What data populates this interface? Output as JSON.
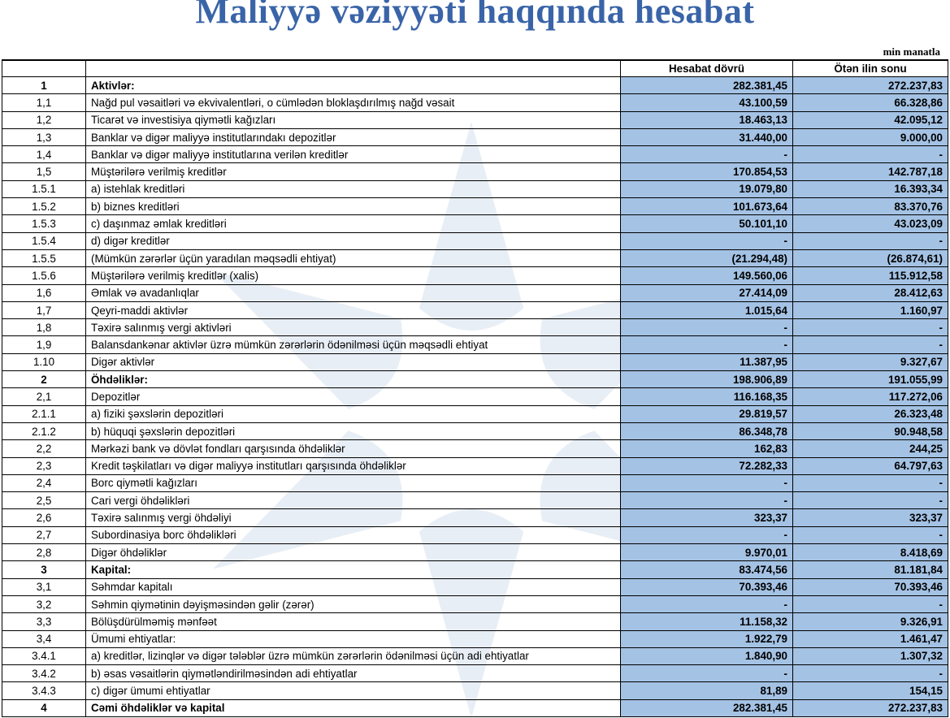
{
  "title": "Maliyyə vəziyyəti haqqında hesabat",
  "unit": "min manatla",
  "colors": {
    "value_fill": "#a4c2e4",
    "title": "#3a64a8"
  },
  "columns": {
    "current": "Hesabat dövrü",
    "previous": "Ötən ilin sonu"
  },
  "rows": [
    {
      "no": "1",
      "label": "Aktivlər:",
      "current": "282.381,45",
      "previous": "272.237,83",
      "bold": true
    },
    {
      "no": "1,1",
      "label": "Nağd pul vəsaitləri və  ekvivalentləri, o cümlədən bloklaşdırılmış nağd vəsait",
      "current": "43.100,59",
      "previous": "66.328,86"
    },
    {
      "no": "1,2",
      "label": "Ticarət və investisiya qiymətli kağızları",
      "current": "18.463,13",
      "previous": "42.095,12"
    },
    {
      "no": "1,3",
      "label": "Banklar və digər maliyyə institutlarındakı depozitlər",
      "current": "31.440,00",
      "previous": "9.000,00"
    },
    {
      "no": "1,4",
      "label": "Banklar və digər maliyyə institutlarına verilən kreditlər",
      "current": "-",
      "previous": "-"
    },
    {
      "no": "1,5",
      "label": "Müştərilərə verilmiş kreditlər",
      "current": "170.854,53",
      "previous": "142.787,18"
    },
    {
      "no": "1.5.1",
      "label": "a) istehlak kreditləri",
      "current": "19.079,80",
      "previous": "16.393,34"
    },
    {
      "no": "1.5.2",
      "label": "b) biznes kreditləri",
      "current": "101.673,64",
      "previous": "83.370,76"
    },
    {
      "no": "1.5.3",
      "label": "c) daşınmaz əmlak kreditləri",
      "current": "50.101,10",
      "previous": "43.023,09"
    },
    {
      "no": "1.5.4",
      "label": "d) digər kreditlər",
      "current": "-",
      "previous": "-"
    },
    {
      "no": "1.5.5",
      "label": "(Mümkün zərərlər üçün yaradılan məqsədli ehtiyat)",
      "current": "(21.294,48)",
      "previous": "(26.874,61)"
    },
    {
      "no": "1.5.6",
      "label": "Müştərilərə verilmiş kreditlər (xalis)",
      "current": "149.560,06",
      "previous": "115.912,58"
    },
    {
      "no": "1,6",
      "label": "Əmlak və avadanlıqlar",
      "current": "27.414,09",
      "previous": "28.412,63"
    },
    {
      "no": "1,7",
      "label": "Qeyri-maddi aktivlər",
      "current": "1.015,64",
      "previous": "1.160,97"
    },
    {
      "no": "1,8",
      "label": "Təxirə salınmış vergi aktivləri",
      "current": "-",
      "previous": "-"
    },
    {
      "no": "1,9",
      "label": "Balansdankənar aktivlər üzrə mümkün zərərlərin ödənilməsi üçün məqsədli ehtiyat",
      "current": "-",
      "previous": "-"
    },
    {
      "no": "1.10",
      "label": "Digər aktivlər",
      "current": "11.387,95",
      "previous": "9.327,67"
    },
    {
      "no": "2",
      "label": "Öhdəliklər:",
      "current": "198.906,89",
      "previous": "191.055,99",
      "bold": true
    },
    {
      "no": "2,1",
      "label": "Depozitlər",
      "current": "116.168,35",
      "previous": "117.272,06"
    },
    {
      "no": "2.1.1",
      "label": "a) fiziki şəxslərin depozitləri",
      "current": "29.819,57",
      "previous": "26.323,48"
    },
    {
      "no": "2.1.2",
      "label": "b) hüquqi şəxslərin depozitləri",
      "current": "86.348,78",
      "previous": "90.948,58"
    },
    {
      "no": "2,2",
      "label": "Mərkəzi bank və dövlət fondları qarşısında öhdəliklər",
      "current": "162,83",
      "previous": "244,25"
    },
    {
      "no": "2,3",
      "label": "Kredit təşkilatları və digər maliyyə institutları qarşısında öhdəliklər",
      "current": "72.282,33",
      "previous": "64.797,63"
    },
    {
      "no": "2,4",
      "label": "Borc qiymətli kağızları",
      "current": "-",
      "previous": "-"
    },
    {
      "no": "2,5",
      "label": "Cari vergi öhdəlikləri",
      "current": "-",
      "previous": "-"
    },
    {
      "no": "2,6",
      "label": "Təxirə salınmış vergi öhdəliyi",
      "current": "323,37",
      "previous": "323,37"
    },
    {
      "no": "2,7",
      "label": "Subordinasiya borc öhdəlikləri",
      "current": "-",
      "previous": "-"
    },
    {
      "no": "2,8",
      "label": "Digər öhdəliklər",
      "current": "9.970,01",
      "previous": "8.418,69"
    },
    {
      "no": "3",
      "label": "Kapital:",
      "current": "83.474,56",
      "previous": "81.181,84",
      "bold": true
    },
    {
      "no": "3,1",
      "label": "Səhmdar kapitalı",
      "current": "70.393,46",
      "previous": "70.393,46"
    },
    {
      "no": "3,2",
      "label": "Səhmin qiymətinin dəyişməsindən gəlir (zərər)",
      "current": "-",
      "previous": "-"
    },
    {
      "no": "3,3",
      "label": "Bölüşdürülməmiş mənfəət",
      "current": "11.158,32",
      "previous": "9.326,91"
    },
    {
      "no": "3,4",
      "label": "Ümumi ehtiyatlar:",
      "current": "1.922,79",
      "previous": "1.461,47"
    },
    {
      "no": "3.4.1",
      "label": "a) kreditlər, lizinqlər və digər tələblər üzrə mümkün zərərlərin ödənilməsi üçün adi ehtiyatlar",
      "current": "1.840,90",
      "previous": "1.307,32"
    },
    {
      "no": "3.4.2",
      "label": "b) əsas vəsaitlərin qiymətləndirilməsindən adi ehtiyatlar",
      "current": "-",
      "previous": "-"
    },
    {
      "no": "3.4.3",
      "label": "c) digər ümumi ehtiyatlar",
      "current": "81,89",
      "previous": "154,15"
    },
    {
      "no": "4",
      "label": "Cəmi öhdəliklər və kapital",
      "current": "282.381,45",
      "previous": "272.237,83",
      "bold": true
    }
  ]
}
